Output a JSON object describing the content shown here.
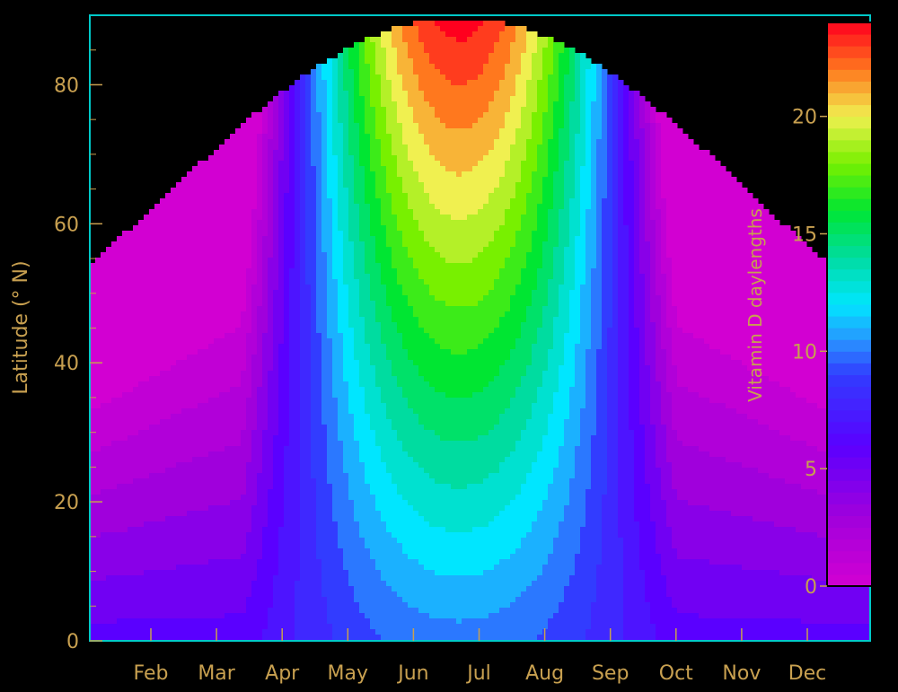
{
  "chart_data": {
    "type": "heatmap",
    "title": "",
    "xlabel": "",
    "ylabel": "Latitude (° N)",
    "x_ticks": [
      "Feb",
      "Mar",
      "Apr",
      "May",
      "Jun",
      "Jul",
      "Aug",
      "Sep",
      "Oct",
      "Nov",
      "Dec"
    ],
    "x_range_months": [
      1,
      12
    ],
    "ylim": [
      0,
      90
    ],
    "y_ticks": [
      0,
      20,
      40,
      60,
      80
    ],
    "colorbar": {
      "label": "Vitamin D daylengths",
      "range": [
        0,
        24
      ],
      "ticks": [
        0,
        5,
        10,
        15,
        20
      ]
    },
    "model": {
      "description_values": "Contour fill of vitamin-D daylength (hours) vs day-of-year and latitude; black where no vitamin-D synthesis; red (24 h) near pole in summer",
      "latitude_limit_jan": 51,
      "latitude_limit_dec": 51,
      "peak_latitude": 90,
      "peak_start_month": "May",
      "peak_end_month": "Aug",
      "contour_step_hours": 1
    },
    "colors": {
      "background": "#000000",
      "axes": "#00c8c8",
      "text": "#c8a050",
      "contour_line": "#00000033"
    },
    "grid": false,
    "legend_position": "right"
  }
}
